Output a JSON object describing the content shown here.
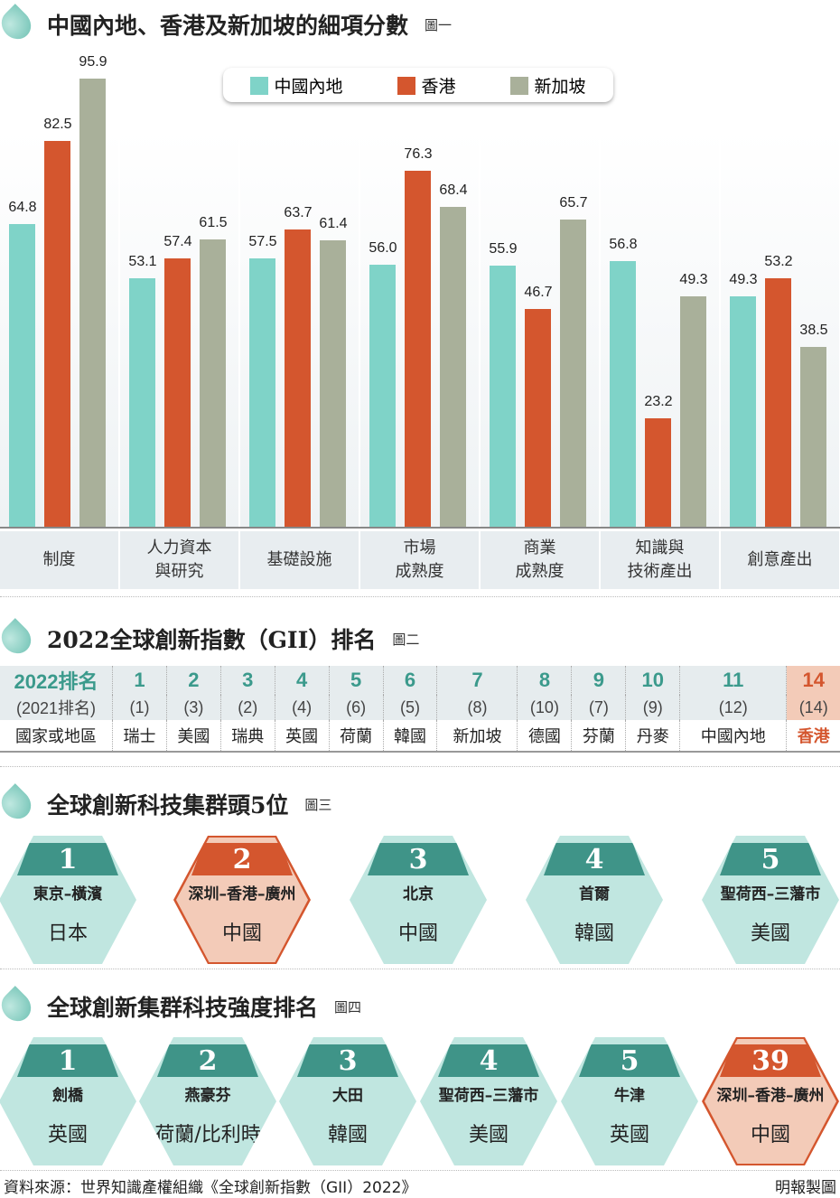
{
  "sections": [
    {
      "title": "中國內地、香港及新加坡的細項分數",
      "fig": "圖一"
    },
    {
      "title": "2022全球創新指數（GII）排名",
      "fig": "圖二"
    },
    {
      "title": "全球創新科技集群頭5位",
      "fig": "圖三"
    },
    {
      "title": "全球創新集群科技強度排名",
      "fig": "圖四"
    }
  ],
  "chart_data": {
    "type": "bar",
    "title": "中國內地、香港及新加坡的細項分數",
    "categories": [
      "制度",
      "人力資本\n與研究",
      "基礎設施",
      "市場\n成熟度",
      "商業\n成熟度",
      "知識與\n技術產出",
      "創意產出"
    ],
    "series": [
      {
        "name": "中國內地",
        "color": "#7fd3c8",
        "values": [
          64.8,
          53.1,
          57.5,
          56.0,
          55.9,
          56.8,
          49.3
        ]
      },
      {
        "name": "香港",
        "color": "#d4562e",
        "values": [
          82.5,
          57.4,
          63.7,
          76.3,
          46.7,
          23.2,
          53.2
        ]
      },
      {
        "name": "新加坡",
        "color": "#a9b09a",
        "values": [
          95.9,
          61.5,
          61.4,
          68.4,
          65.7,
          49.3,
          38.5
        ]
      }
    ],
    "ylim": [
      0,
      100
    ],
    "legend": "top-center"
  },
  "gii": {
    "rank_label": "2022排名",
    "prev_label": "(2021排名)",
    "name_label": "國家或地區",
    "rows": [
      {
        "rank": "1",
        "prev": "(1)",
        "name": "瑞士"
      },
      {
        "rank": "2",
        "prev": "(3)",
        "name": "美國"
      },
      {
        "rank": "3",
        "prev": "(2)",
        "name": "瑞典"
      },
      {
        "rank": "4",
        "prev": "(4)",
        "name": "英國"
      },
      {
        "rank": "5",
        "prev": "(6)",
        "name": "荷蘭"
      },
      {
        "rank": "6",
        "prev": "(5)",
        "name": "韓國"
      },
      {
        "rank": "7",
        "prev": "(8)",
        "name": "新加坡"
      },
      {
        "rank": "8",
        "prev": "(10)",
        "name": "德國"
      },
      {
        "rank": "9",
        "prev": "(7)",
        "name": "芬蘭"
      },
      {
        "rank": "10",
        "prev": "(9)",
        "name": "丹麥"
      },
      {
        "rank": "11",
        "prev": "(12)",
        "name": "中國內地"
      },
      {
        "rank": "14",
        "prev": "(14)",
        "name": "香港",
        "highlight": true
      }
    ]
  },
  "clusters": [
    {
      "rank": "1",
      "city": "東京–橫濱",
      "country": "日本"
    },
    {
      "rank": "2",
      "city": "深圳–香港–廣州",
      "country": "中國",
      "highlight": true
    },
    {
      "rank": "3",
      "city": "北京",
      "country": "中國"
    },
    {
      "rank": "4",
      "city": "首爾",
      "country": "韓國"
    },
    {
      "rank": "5",
      "city": "聖荷西–三藩市",
      "country": "美國"
    }
  ],
  "intensity": [
    {
      "rank": "1",
      "city": "劍橋",
      "country": "英國"
    },
    {
      "rank": "2",
      "city": "燕豪芬",
      "country": "荷蘭/比利時"
    },
    {
      "rank": "3",
      "city": "大田",
      "country": "韓國"
    },
    {
      "rank": "4",
      "city": "聖荷西–三藩市",
      "country": "美國"
    },
    {
      "rank": "5",
      "city": "牛津",
      "country": "英國"
    },
    {
      "rank": "39",
      "city": "深圳–香港–廣州",
      "country": "中國",
      "highlight": true
    }
  ],
  "footer": {
    "source": "資料來源：世界知識產權組織《全球創新指數（GII）2022》",
    "credit": "明報製圖"
  }
}
